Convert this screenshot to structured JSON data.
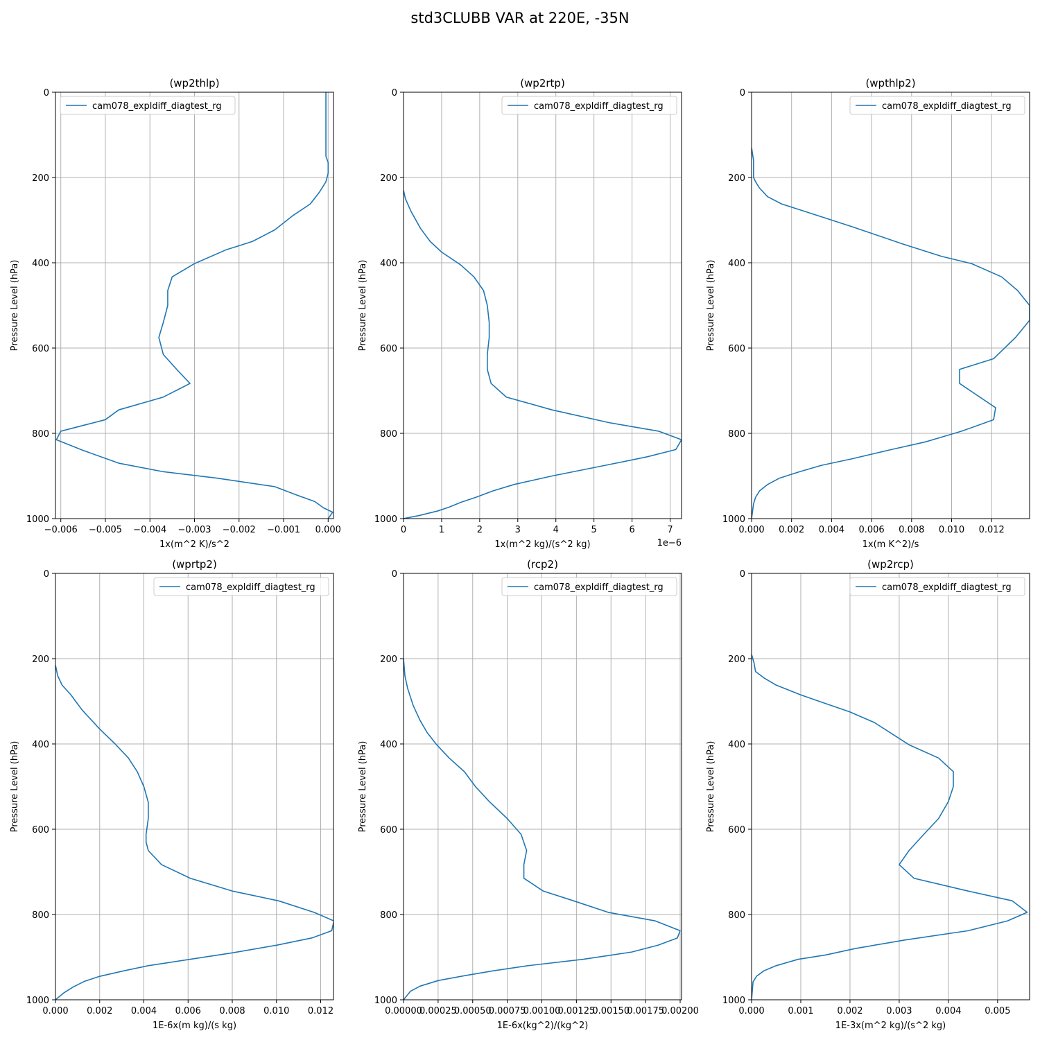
{
  "figure_title": "std3CLUBB VAR at 220E, -35N",
  "colors": {
    "line": "#1f77b4",
    "grid": "#b0b0b0",
    "axis": "#000000"
  },
  "chart_data": [
    {
      "type": "line",
      "title": "(wp2thlp)",
      "xlabel": "1x(m^2 K)/s^2",
      "ylabel": "Pressure Level (hPa)",
      "xlim": [
        -0.00612,
        0.00012
      ],
      "ylim": [
        1000,
        0
      ],
      "xticks": [
        -0.006,
        -0.005,
        -0.004,
        -0.003,
        -0.002,
        -0.001,
        0.0
      ],
      "xtick_labels": [
        "−0.006",
        "−0.005",
        "−0.004",
        "−0.003",
        "−0.002",
        "−0.001",
        "0.000"
      ],
      "xoffset_label": "",
      "yticks": [
        0,
        200,
        400,
        600,
        800,
        1000
      ],
      "ytick_labels": [
        "0",
        "200",
        "400",
        "600",
        "800",
        "1000"
      ],
      "grid": true,
      "legend_position": "upper-left",
      "series": [
        {
          "name": "cam078_expldiff_diagtest_rg",
          "x": [
            -5e-05,
            -5e-05,
            -5e-05,
            -5e-05,
            0.0,
            0.0,
            -5e-05,
            -0.0002,
            -0.0004,
            -0.0008,
            -0.0012,
            -0.0017,
            -0.0023,
            -0.003,
            -0.0035,
            -0.0036,
            -0.0036,
            -0.0037,
            -0.0038,
            -0.0037,
            -0.0034,
            -0.0031,
            -0.0037,
            -0.0047,
            -0.005,
            -0.006,
            -0.0061,
            -0.0055,
            -0.0047,
            -0.0037,
            -0.0025,
            -0.0012,
            -0.0007,
            -0.0003,
            -0.0001,
            0.0001,
            0.0
          ],
          "y": [
            0,
            50,
            100,
            150,
            165,
            190,
            210,
            235,
            262,
            290,
            323,
            350,
            370,
            402,
            433,
            465,
            500,
            540,
            575,
            615,
            650,
            683,
            715,
            745,
            768,
            795,
            815,
            840,
            870,
            890,
            905,
            925,
            945,
            960,
            975,
            985,
            1000
          ]
        }
      ]
    },
    {
      "type": "line",
      "title": "(wp2rtp)",
      "xlabel": "1x(m^2 kg)/(s^2 kg)",
      "ylabel": "Pressure Level (hPa)",
      "xlim": [
        0,
        7.3e-06
      ],
      "ylim": [
        1000,
        0
      ],
      "xticks": [
        0,
        1e-06,
        2e-06,
        3e-06,
        4e-06,
        5e-06,
        6e-06,
        7e-06
      ],
      "xtick_labels": [
        "0",
        "1",
        "2",
        "3",
        "4",
        "5",
        "6",
        "7"
      ],
      "xoffset_label": "1e−6",
      "yticks": [
        0,
        200,
        400,
        600,
        800,
        1000
      ],
      "ytick_labels": [
        "0",
        "200",
        "400",
        "600",
        "800",
        "1000"
      ],
      "grid": true,
      "legend_position": "upper-right",
      "series": [
        {
          "name": "cam078_expldiff_diagtest_rg",
          "x": [
            0,
            5e-08,
            2e-07,
            4.5e-07,
            7e-07,
            1e-06,
            1.5e-06,
            1.85e-06,
            2.1e-06,
            2.2e-06,
            2.25e-06,
            2.25e-06,
            2.2e-06,
            2.2e-06,
            2.3e-06,
            2.7e-06,
            3.9e-06,
            5.4e-06,
            6.7e-06,
            7.3e-06,
            7.15e-06,
            6.4e-06,
            5.3e-06,
            3.9e-06,
            2.9e-06,
            2.35e-06,
            1.9e-06,
            1.5e-06,
            1.2e-06,
            9e-07,
            4e-07,
            0
          ],
          "y": [
            230,
            250,
            280,
            320,
            350,
            375,
            405,
            433,
            465,
            500,
            540,
            575,
            615,
            650,
            683,
            715,
            745,
            775,
            795,
            815,
            838,
            855,
            875,
            900,
            920,
            935,
            950,
            962,
            973,
            982,
            993,
            1000
          ]
        }
      ]
    },
    {
      "type": "line",
      "title": "(wpthlp2)",
      "xlabel": "1x(m K^2)/s",
      "ylabel": "Pressure Level (hPa)",
      "xlim": [
        0,
        0.0139
      ],
      "ylim": [
        1000,
        0
      ],
      "xticks": [
        0.0,
        0.002,
        0.004,
        0.006,
        0.008,
        0.01,
        0.012
      ],
      "xtick_labels": [
        "0.000",
        "0.002",
        "0.004",
        "0.006",
        "0.008",
        "0.010",
        "0.012"
      ],
      "xoffset_label": "",
      "yticks": [
        0,
        200,
        400,
        600,
        800,
        1000
      ],
      "ytick_labels": [
        "0",
        "200",
        "400",
        "600",
        "800",
        "1000"
      ],
      "grid": true,
      "legend_position": "upper-right",
      "series": [
        {
          "name": "cam078_expldiff_diagtest_rg",
          "x": [
            0.0,
            0.0001,
            0.0001,
            0.0002,
            0.0004,
            0.0008,
            0.0015,
            0.0027,
            0.005,
            0.0075,
            0.0095,
            0.011,
            0.0125,
            0.0133,
            0.0139,
            0.0139,
            0.0132,
            0.0121,
            0.0104,
            0.0104,
            0.0122,
            0.0121,
            0.0105,
            0.0087,
            0.0068,
            0.005,
            0.0035,
            0.0024,
            0.0014,
            0.0008,
            0.0004,
            0.0002,
            0.0001,
            0.0
          ],
          "y": [
            130,
            160,
            200,
            210,
            225,
            245,
            262,
            280,
            315,
            355,
            385,
            402,
            433,
            465,
            500,
            535,
            575,
            625,
            650,
            683,
            740,
            768,
            795,
            820,
            840,
            860,
            875,
            890,
            905,
            920,
            935,
            950,
            965,
            1000
          ]
        }
      ]
    },
    {
      "type": "line",
      "title": "(wprtp2)",
      "xlabel": "1E-6x(m kg)/(s kg)",
      "ylabel": "Pressure Level (hPa)",
      "xlim": [
        0,
        0.01258
      ],
      "ylim": [
        1000,
        0
      ],
      "xticks": [
        0.0,
        0.002,
        0.004,
        0.006,
        0.008,
        0.01,
        0.012
      ],
      "xtick_labels": [
        "0.000",
        "0.002",
        "0.004",
        "0.006",
        "0.008",
        "0.010",
        "0.012"
      ],
      "xoffset_label": "",
      "yticks": [
        0,
        200,
        400,
        600,
        800,
        1000
      ],
      "ytick_labels": [
        "0",
        "200",
        "400",
        "600",
        "800",
        "1000"
      ],
      "grid": true,
      "legend_position": "upper-right",
      "series": [
        {
          "name": "cam078_expldiff_diagtest_rg",
          "x": [
            0.0,
            0.0001,
            0.0003,
            0.0007,
            0.0012,
            0.002,
            0.0027,
            0.0033,
            0.0037,
            0.004,
            0.0042,
            0.0042,
            0.0041,
            0.0041,
            0.0042,
            0.0048,
            0.0061,
            0.008,
            0.0101,
            0.0117,
            0.0126,
            0.0125,
            0.0116,
            0.01,
            0.008,
            0.0061,
            0.0042,
            0.0031,
            0.002,
            0.0013,
            0.0008,
            0.0004,
            0.0
          ],
          "y": [
            215,
            240,
            262,
            285,
            320,
            365,
            400,
            433,
            465,
            500,
            537,
            575,
            612,
            630,
            650,
            683,
            715,
            745,
            768,
            795,
            815,
            838,
            855,
            872,
            890,
            905,
            920,
            932,
            945,
            957,
            970,
            983,
            1000
          ]
        }
      ]
    },
    {
      "type": "line",
      "title": "(rcp2)",
      "xlabel": "1E-6x(kg^2)/(kg^2)",
      "ylabel": "Pressure Level (hPa)",
      "xlim": [
        0,
        0.00201
      ],
      "ylim": [
        1000,
        0
      ],
      "xticks": [
        0.0,
        0.00025,
        0.0005,
        0.00075,
        0.001,
        0.00125,
        0.0015,
        0.00175,
        0.002
      ],
      "xtick_labels": [
        "0.00000",
        "0.00025",
        "0.00050",
        "0.00075",
        "0.00100",
        "0.00125",
        "0.00150",
        "0.00175",
        "0.00200"
      ],
      "xoffset_label": "",
      "yticks": [
        0,
        200,
        400,
        600,
        800,
        1000
      ],
      "ytick_labels": [
        "0",
        "200",
        "400",
        "600",
        "800",
        "1000"
      ],
      "grid": true,
      "legend_position": "upper-right",
      "series": [
        {
          "name": "cam078_expldiff_diagtest_rg",
          "x": [
            0.0,
            1e-05,
            3e-05,
            7e-05,
            0.00012,
            0.00017,
            0.00024,
            0.00033,
            0.00044,
            0.00052,
            0.00062,
            0.00075,
            0.00085,
            0.00089,
            0.00087,
            0.00087,
            0.00101,
            0.00123,
            0.00148,
            0.00182,
            0.002,
            0.00198,
            0.00184,
            0.00165,
            0.0013,
            0.0009,
            0.00065,
            0.00045,
            0.00025,
            0.00012,
            5e-05,
            2e-05,
            0.0
          ],
          "y": [
            200,
            240,
            270,
            310,
            345,
            373,
            402,
            433,
            465,
            500,
            535,
            575,
            612,
            650,
            683,
            715,
            745,
            768,
            795,
            815,
            838,
            855,
            872,
            888,
            905,
            920,
            932,
            943,
            955,
            968,
            980,
            992,
            1000
          ]
        }
      ]
    },
    {
      "type": "line",
      "title": "(wp2rcp)",
      "xlabel": "1E-3x(m^2 kg)/(s^2 kg)",
      "ylabel": "Pressure Level (hPa)",
      "xlim": [
        0,
        0.00565
      ],
      "ylim": [
        1000,
        0
      ],
      "xticks": [
        0.0,
        0.001,
        0.002,
        0.003,
        0.004,
        0.005
      ],
      "xtick_labels": [
        "0.000",
        "0.001",
        "0.002",
        "0.003",
        "0.004",
        "0.005"
      ],
      "xoffset_label": "",
      "yticks": [
        0,
        200,
        400,
        600,
        800,
        1000
      ],
      "ytick_labels": [
        "0",
        "200",
        "400",
        "600",
        "800",
        "1000"
      ],
      "grid": true,
      "legend_position": "upper-right",
      "series": [
        {
          "name": "cam078_expldiff_diagtest_rg",
          "x": [
            0.0,
            5e-05,
            8e-05,
            0.00025,
            0.0005,
            0.001,
            0.0015,
            0.002,
            0.0025,
            0.0032,
            0.0038,
            0.0041,
            0.0041,
            0.004,
            0.0038,
            0.0035,
            0.0032,
            0.003,
            0.0033,
            0.0044,
            0.0053,
            0.0056,
            0.0052,
            0.0044,
            0.0031,
            0.0021,
            0.0015,
            0.00095,
            0.0005,
            0.00025,
            0.0001,
            3e-05,
            0.0
          ],
          "y": [
            190,
            210,
            230,
            245,
            262,
            285,
            305,
            325,
            350,
            402,
            433,
            465,
            500,
            535,
            575,
            612,
            650,
            683,
            715,
            745,
            768,
            795,
            815,
            838,
            860,
            880,
            895,
            905,
            920,
            932,
            945,
            958,
            1000
          ]
        }
      ]
    }
  ]
}
